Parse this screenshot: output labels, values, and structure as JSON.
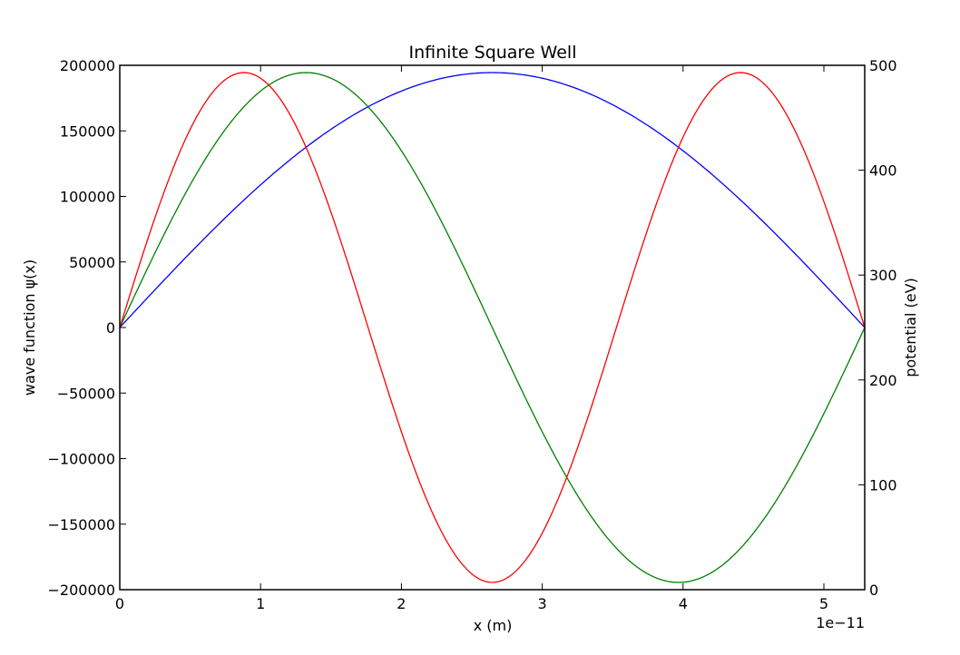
{
  "chart_data": {
    "type": "line",
    "title": "Infinite Square Well",
    "xlabel": "x (m)",
    "ylabel": "wave function ψ(x)",
    "ylabel_right": "potential (eV)",
    "x_offset_label": "1e−11",
    "x_unit_scale": 1e-11,
    "xlim": [
      0,
      5.29e-11
    ],
    "ylim": [
      -200000,
      200000
    ],
    "ylim_right": [
      0,
      500
    ],
    "x_ticks": [
      0,
      1,
      2,
      3,
      4,
      5
    ],
    "x_tick_labels": [
      "0",
      "1",
      "2",
      "3",
      "4",
      "5"
    ],
    "y_ticks": [
      200000,
      150000,
      100000,
      50000,
      0,
      -50000,
      -100000,
      -150000,
      -200000
    ],
    "y_tick_labels": [
      "200000",
      "150000",
      "100000",
      "50000",
      "0",
      "−50000",
      "−100000",
      "−150000",
      "−200000"
    ],
    "y_right_ticks": [
      500,
      400,
      300,
      200,
      100,
      0
    ],
    "y_right_tick_labels": [
      "500",
      "400",
      "300",
      "200",
      "100",
      "0"
    ],
    "grid": false,
    "series": [
      {
        "mode": 1,
        "amplitude": 194450,
        "color": "#0000ff"
      },
      {
        "mode": 2,
        "amplitude": 194450,
        "color": "#008000"
      },
      {
        "mode": 3,
        "amplitude": 194450,
        "color": "#ff0000"
      }
    ]
  }
}
